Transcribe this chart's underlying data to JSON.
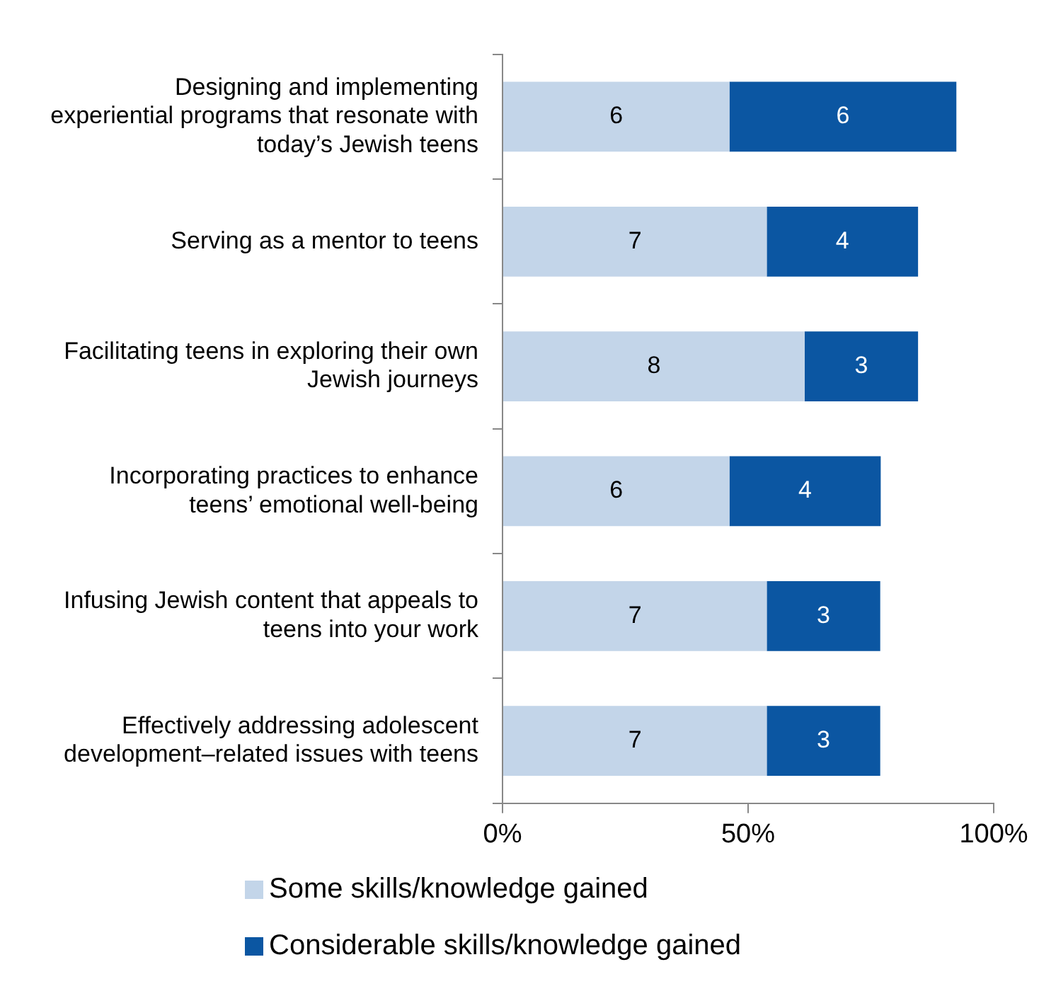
{
  "chart_data": {
    "type": "bar",
    "orientation": "horizontal",
    "stacked": true,
    "categories": [
      "Designing and implementing experiential programs that resonate with today’s Jewish teens",
      "Serving as a mentor to teens",
      "Facilitating teens in exploring their own Jewish journeys",
      "Incorporating practices to enhance teens’ emotional well-being",
      "Infusing Jewish content that appeals to teens into your work",
      "Effectively addressing adolescent development–related issues with teens"
    ],
    "series": [
      {
        "name": "Some skills/knowledge gained",
        "color": "#c3d5e9",
        "values": [
          46.2,
          53.8,
          61.5,
          46.2,
          53.8,
          53.8
        ]
      },
      {
        "name": "Considerable skills/knowledge gained",
        "color": "#0b56a2",
        "values": [
          46.2,
          30.8,
          23.1,
          30.8,
          23.1,
          23.1
        ]
      }
    ],
    "annotations": [
      "6",
      "6",
      "7",
      "4",
      "8",
      "3",
      "6",
      "4",
      "7",
      "3",
      "7",
      "3"
    ],
    "xlim": [
      0,
      100
    ],
    "xticks": [
      {
        "value": 0,
        "label": "0%"
      },
      {
        "value": 50,
        "label": "50%"
      },
      {
        "value": 100,
        "label": "100%"
      }
    ],
    "grid": false,
    "legend": "bottom"
  }
}
